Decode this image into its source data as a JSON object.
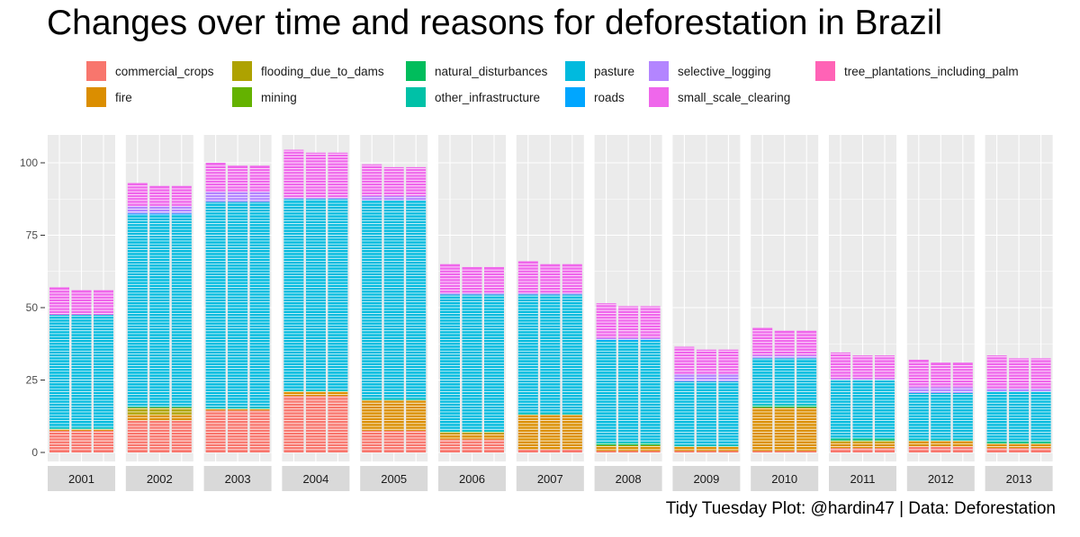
{
  "title": "Changes over time and reasons for deforestation in Brazil",
  "caption": "Tidy Tuesday Plot: @hardin47 | Data: Deforestation",
  "legend": [
    {
      "label": "commercial_crops",
      "color": "#F8766D"
    },
    {
      "label": "fire",
      "color": "#DB8E00"
    },
    {
      "label": "flooding_due_to_dams",
      "color": "#AEA200"
    },
    {
      "label": "mining",
      "color": "#64B200"
    },
    {
      "label": "natural_disturbances",
      "color": "#00BD5C"
    },
    {
      "label": "other_infrastructure",
      "color": "#00C1A7"
    },
    {
      "label": "pasture",
      "color": "#00BADE"
    },
    {
      "label": "roads",
      "color": "#00A6FF"
    },
    {
      "label": "selective_logging",
      "color": "#B385FF"
    },
    {
      "label": "small_scale_clearing",
      "color": "#EF67EB"
    },
    {
      "label": "tree_plantations_including_palm",
      "color": "#FF63B6"
    }
  ],
  "chart_data": {
    "type": "bar",
    "stacked": true,
    "faceted_by": "year",
    "title": "Changes over time and reasons for deforestation in Brazil",
    "ylim": [
      0,
      110
    ],
    "yticks": [
      0,
      25,
      50,
      75,
      100
    ],
    "grid": true,
    "legend_position": "top",
    "bars_per_panel": 3,
    "years": [
      "2001",
      "2002",
      "2003",
      "2004",
      "2005",
      "2006",
      "2007",
      "2008",
      "2009",
      "2010",
      "2011",
      "2012",
      "2013"
    ],
    "series": [
      {
        "name": "commercial_crops",
        "values": [
          7.5,
          11,
          14.5,
          19.5,
          7.5,
          4.5,
          1,
          0.5,
          0.5,
          0.5,
          1.5,
          2,
          1.5
        ]
      },
      {
        "name": "fire",
        "values": [
          0.5,
          2,
          0.5,
          1.5,
          10.5,
          2,
          12,
          1.5,
          1.5,
          15,
          2,
          2,
          1.5
        ]
      },
      {
        "name": "flooding_due_to_dams",
        "values": [
          0,
          2.5,
          0,
          0,
          0,
          0.5,
          0,
          0.5,
          0,
          0,
          0.5,
          0,
          0
        ]
      },
      {
        "name": "mining",
        "values": [
          0,
          0,
          0,
          0,
          0,
          0,
          0,
          0,
          0,
          0,
          0,
          0,
          0
        ]
      },
      {
        "name": "natural_disturbances",
        "values": [
          0,
          0,
          0,
          0,
          0,
          0,
          0,
          0.5,
          0,
          0.5,
          0.5,
          0,
          0.5
        ]
      },
      {
        "name": "other_infrastructure",
        "values": [
          0.5,
          0.5,
          0.5,
          0.5,
          0.5,
          0.5,
          0.5,
          0.5,
          0.5,
          0.5,
          0.5,
          0.5,
          0.5
        ]
      },
      {
        "name": "pasture",
        "values": [
          39,
          66,
          71,
          66,
          68.5,
          47,
          41,
          35,
          22,
          16,
          20,
          16,
          17
        ]
      },
      {
        "name": "roads",
        "values": [
          0,
          0.5,
          0,
          0,
          0,
          0,
          0,
          0.5,
          0,
          0,
          0,
          0,
          0
        ]
      },
      {
        "name": "selective_logging",
        "values": [
          0,
          2.5,
          3.5,
          0.5,
          1.5,
          0.5,
          0.5,
          0.5,
          2.5,
          1,
          0.5,
          2,
          1
        ]
      },
      {
        "name": "small_scale_clearing",
        "values": [
          9.5,
          8,
          10,
          16.5,
          11,
          10,
          11,
          12,
          9.5,
          9.5,
          9,
          9.5,
          11.5
        ]
      },
      {
        "name": "tree_plantations_including_palm",
        "values": [
          0,
          0,
          0,
          0,
          0,
          0,
          0,
          0,
          0,
          0,
          0,
          0,
          0
        ]
      }
    ]
  }
}
